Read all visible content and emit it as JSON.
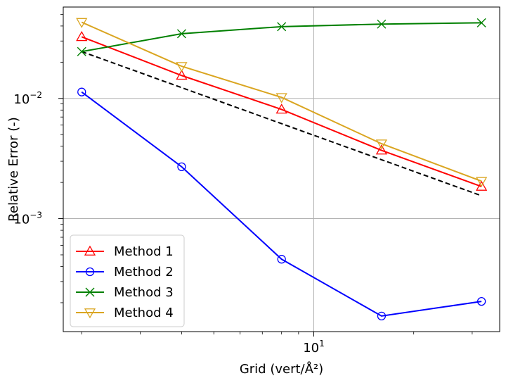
{
  "chart_data": {
    "type": "line",
    "xscale": "log",
    "yscale": "log",
    "xlabel": "Grid (vert/Å²)",
    "ylabel": "Relative Error (-)",
    "xlim": [
      1.76,
      36.3
    ],
    "ylim": [
      0.000115,
      0.0575
    ],
    "xticks": [
      {
        "value": 10,
        "base": "10",
        "exp": "1"
      }
    ],
    "yticks": [
      {
        "value": 0.001,
        "base": "10",
        "exp": "−3"
      },
      {
        "value": 0.01,
        "base": "10",
        "exp": "−2"
      }
    ],
    "grid": true,
    "legend": "lower-left",
    "x": [
      2,
      4,
      8,
      16,
      32
    ],
    "series": [
      {
        "name": "Method 1",
        "color": "#ff0000",
        "marker": "triangle-up",
        "values": [
          0.0325,
          0.0155,
          0.0081,
          0.0037,
          0.00185
        ]
      },
      {
        "name": "Method 2",
        "color": "#0000ff",
        "marker": "circle",
        "values": [
          0.0113,
          0.0027,
          0.00046,
          0.000155,
          0.000205
        ]
      },
      {
        "name": "Method 3",
        "color": "#008000",
        "marker": "x",
        "values": [
          0.0245,
          0.0345,
          0.0395,
          0.0415,
          0.0425
        ]
      },
      {
        "name": "Method 4",
        "color": "#daa520",
        "marker": "triangle-down",
        "values": [
          0.043,
          0.0185,
          0.0102,
          0.0042,
          0.00205
        ]
      }
    ],
    "reference_line": {
      "color": "#000000",
      "style": "dashed",
      "x": [
        2,
        32
      ],
      "values": [
        0.0245,
        0.00155
      ]
    }
  }
}
